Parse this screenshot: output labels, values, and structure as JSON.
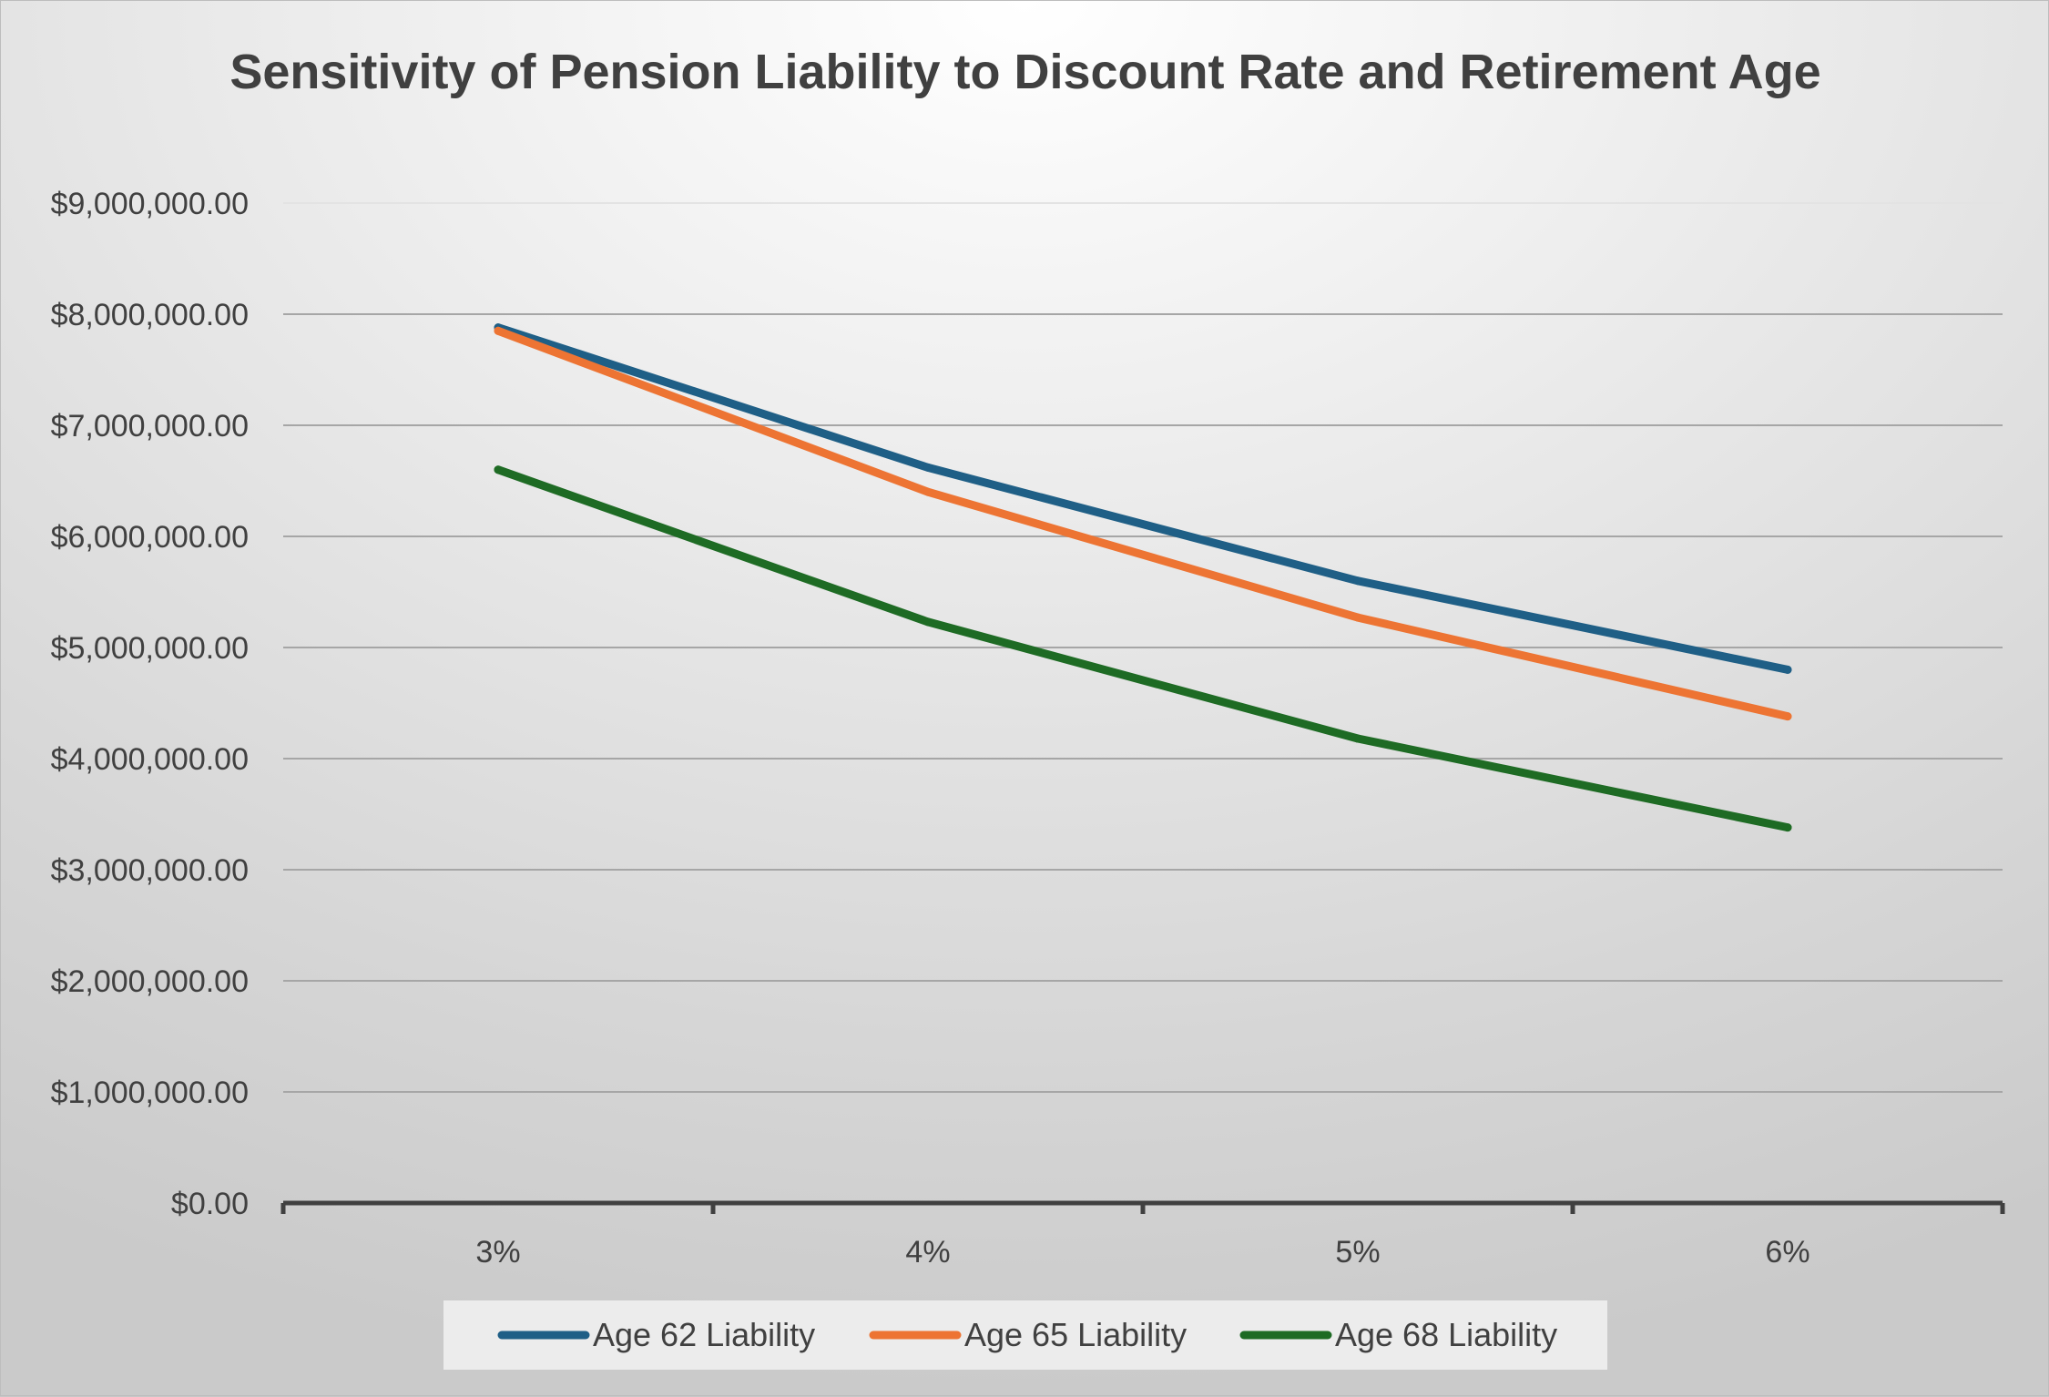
{
  "chart_data": {
    "type": "line",
    "title": "Sensitivity of Pension Liability to Discount Rate and Retirement Age",
    "categories": [
      "3%",
      "4%",
      "5%",
      "6%"
    ],
    "y_ticks": [
      "$0.00",
      "$1,000,000.00",
      "$2,000,000.00",
      "$3,000,000.00",
      "$4,000,000.00",
      "$5,000,000.00",
      "$6,000,000.00",
      "$7,000,000.00",
      "$8,000,000.00",
      "$9,000,000.00"
    ],
    "ylim": [
      0,
      9000000
    ],
    "grid": true,
    "legend_position": "bottom",
    "series": [
      {
        "name": "Age 62 Liability",
        "color": "#1f5f86",
        "values": [
          7880000,
          6620000,
          5600000,
          4800000
        ]
      },
      {
        "name": "Age 65 Liability",
        "color": "#ed7433",
        "values": [
          7850000,
          6400000,
          5270000,
          4380000
        ]
      },
      {
        "name": "Age 68 Liability",
        "color": "#1e6b24",
        "values": [
          6600000,
          5230000,
          4180000,
          3380000
        ]
      }
    ]
  }
}
